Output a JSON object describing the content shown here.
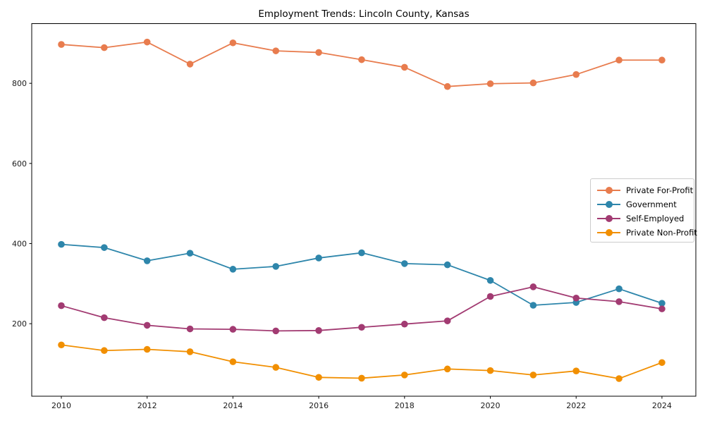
{
  "chart_data": {
    "type": "line",
    "title": "Employment Trends: Lincoln County, Kansas",
    "xlabel": "",
    "ylabel": "",
    "x": [
      2010,
      2011,
      2012,
      2013,
      2014,
      2015,
      2016,
      2017,
      2018,
      2019,
      2020,
      2021,
      2022,
      2023,
      2024
    ],
    "series": [
      {
        "name": "Private For-Profit",
        "color": "#E87C4E",
        "values": [
          897,
          889,
          903,
          848,
          901,
          881,
          877,
          859,
          840,
          792,
          799,
          801,
          822,
          858,
          858
        ]
      },
      {
        "name": "Government",
        "color": "#2E86AB",
        "values": [
          398,
          390,
          357,
          376,
          336,
          343,
          364,
          377,
          350,
          347,
          308,
          246,
          253,
          287,
          251
        ]
      },
      {
        "name": "Self-Employed",
        "color": "#A23B72",
        "values": [
          245,
          215,
          196,
          187,
          186,
          182,
          183,
          191,
          199,
          207,
          268,
          292,
          264,
          255,
          237
        ]
      },
      {
        "name": "Private Non-Profit",
        "color": "#F18F01",
        "values": [
          147,
          133,
          136,
          130,
          105,
          91,
          66,
          64,
          72,
          87,
          83,
          72,
          82,
          63,
          103
        ]
      }
    ],
    "xticks": [
      2010,
      2012,
      2014,
      2016,
      2018,
      2020,
      2022,
      2024
    ],
    "yticks": [
      200,
      400,
      600,
      800
    ],
    "xlim": [
      2009.31,
      2024.79
    ],
    "ylim": [
      19,
      949
    ],
    "grid": false,
    "legend_position": "center right",
    "axis_color": "#000000",
    "tick_label_color": "#1a1a1a",
    "background_color": "#ffffff"
  }
}
